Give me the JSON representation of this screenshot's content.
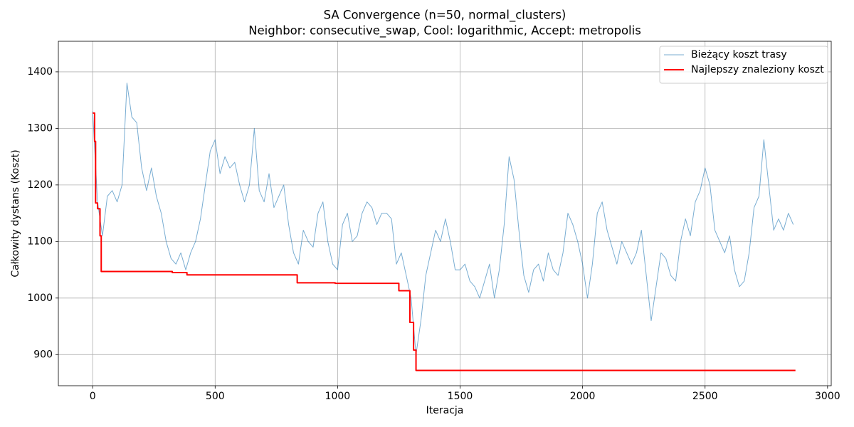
{
  "chart_data": {
    "type": "line",
    "title": "SA Convergence (n=50, normal_clusters)",
    "subtitle": "Neighbor: consecutive_swap, Cool: logarithmic, Accept: metropolis",
    "xlabel": "Iteracja",
    "ylabel": "Całkowity dystans (Koszt)",
    "xlim": [
      -140,
      3015
    ],
    "ylim": [
      845,
      1454
    ],
    "xticks": [
      0,
      500,
      1000,
      1500,
      2000,
      2500,
      3000
    ],
    "yticks": [
      900,
      1000,
      1100,
      1200,
      1300,
      1400
    ],
    "grid": true,
    "legend": "upper right",
    "series": [
      {
        "name": "Bieżący koszt trasy",
        "color": "#1f77b4",
        "x": [
          0,
          20,
          40,
          60,
          80,
          100,
          120,
          140,
          160,
          180,
          200,
          220,
          240,
          260,
          280,
          300,
          320,
          340,
          360,
          380,
          400,
          420,
          440,
          460,
          480,
          500,
          520,
          540,
          560,
          580,
          600,
          620,
          640,
          660,
          680,
          700,
          720,
          740,
          760,
          780,
          800,
          820,
          840,
          860,
          880,
          900,
          920,
          940,
          960,
          980,
          1000,
          1020,
          1040,
          1060,
          1080,
          1100,
          1120,
          1140,
          1160,
          1180,
          1200,
          1220,
          1240,
          1260,
          1280,
          1300,
          1320,
          1340,
          1360,
          1380,
          1400,
          1420,
          1440,
          1460,
          1480,
          1500,
          1520,
          1540,
          1560,
          1580,
          1600,
          1620,
          1640,
          1660,
          1680,
          1700,
          1720,
          1740,
          1760,
          1780,
          1800,
          1820,
          1840,
          1860,
          1880,
          1900,
          1920,
          1940,
          1960,
          1980,
          2000,
          2020,
          2040,
          2060,
          2080,
          2100,
          2120,
          2140,
          2160,
          2180,
          2200,
          2220,
          2240,
          2260,
          2280,
          2300,
          2320,
          2340,
          2360,
          2380,
          2400,
          2420,
          2440,
          2460,
          2480,
          2500,
          2520,
          2540,
          2560,
          2580,
          2600,
          2620,
          2640,
          2660,
          2680,
          2700,
          2720,
          2740,
          2760,
          2780,
          2800,
          2820,
          2840,
          2860
        ],
        "values": [
          1330,
          1170,
          1110,
          1180,
          1190,
          1170,
          1200,
          1380,
          1320,
          1310,
          1230,
          1190,
          1230,
          1180,
          1150,
          1100,
          1070,
          1060,
          1080,
          1050,
          1080,
          1100,
          1140,
          1200,
          1260,
          1280,
          1220,
          1250,
          1230,
          1240,
          1200,
          1170,
          1200,
          1300,
          1190,
          1170,
          1220,
          1160,
          1180,
          1200,
          1130,
          1080,
          1060,
          1120,
          1100,
          1090,
          1150,
          1170,
          1100,
          1060,
          1050,
          1130,
          1150,
          1100,
          1110,
          1150,
          1170,
          1160,
          1130,
          1150,
          1150,
          1140,
          1060,
          1080,
          1040,
          1000,
          900,
          960,
          1040,
          1080,
          1120,
          1100,
          1140,
          1100,
          1050,
          1050,
          1060,
          1030,
          1020,
          1000,
          1030,
          1060,
          1000,
          1050,
          1130,
          1250,
          1210,
          1120,
          1040,
          1010,
          1050,
          1060,
          1030,
          1080,
          1050,
          1040,
          1080,
          1150,
          1130,
          1100,
          1060,
          1000,
          1060,
          1150,
          1170,
          1120,
          1090,
          1060,
          1100,
          1080,
          1060,
          1080,
          1120,
          1040,
          960,
          1020,
          1080,
          1070,
          1040,
          1030,
          1100,
          1140,
          1110,
          1170,
          1190,
          1230,
          1200,
          1120,
          1100,
          1080,
          1110,
          1050,
          1020,
          1030,
          1080,
          1160,
          1180,
          1280,
          1200,
          1120,
          1140,
          1120,
          1150,
          1130
        ]
      },
      {
        "name": "Najlepszy znaleziony koszt",
        "color": "#ff0000",
        "x": [
          0,
          8,
          8,
          12,
          12,
          20,
          20,
          30,
          30,
          35,
          35,
          325,
          325,
          385,
          385,
          835,
          835,
          990,
          990,
          1250,
          1250,
          1295,
          1295,
          1310,
          1310,
          1320,
          1320,
          2869
        ],
        "values": [
          1327,
          1327,
          1277,
          1277,
          1168,
          1168,
          1158,
          1158,
          1110,
          1110,
          1047,
          1047,
          1045,
          1045,
          1041,
          1041,
          1027,
          1027,
          1026,
          1026,
          1013,
          1013,
          957,
          957,
          908,
          908,
          872,
          872
        ]
      }
    ]
  }
}
